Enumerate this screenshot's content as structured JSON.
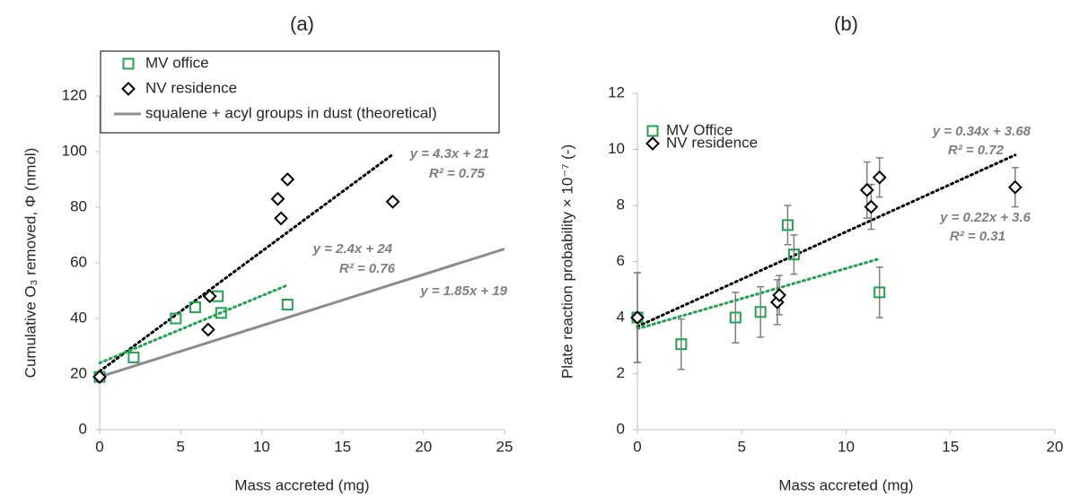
{
  "chart_data": [
    {
      "type": "scatter",
      "title": "(a)",
      "x_label": "Mass accreted (mg)",
      "y_label": "Cumulative O₃ removed, Φ (nmol)",
      "xlim": [
        0,
        25
      ],
      "xticks": [
        0,
        5,
        10,
        15,
        20,
        25
      ],
      "ylim": [
        0,
        120
      ],
      "yticks": [
        0,
        20,
        40,
        60,
        80,
        100,
        120
      ],
      "legend": "top-left",
      "legend_box": true,
      "series": [
        {
          "name": "MV office",
          "color": "#22a24f",
          "marker": "square",
          "x": [
            0,
            2.1,
            4.7,
            5.9,
            7.3,
            7.5,
            11.6
          ],
          "values": [
            19,
            26,
            40,
            44,
            48,
            42,
            45
          ]
        },
        {
          "name": "NV residence",
          "color": "#000000",
          "marker": "diamond",
          "x": [
            0,
            6.7,
            6.8,
            11.0,
            11.2,
            11.6,
            18.1
          ],
          "values": [
            19,
            36,
            48,
            83,
            76,
            90,
            82
          ]
        }
      ],
      "trendlines": [
        {
          "name": "squalene + acyl groups in dust (theoretical)",
          "color": "#8c8c8c",
          "style": "solid",
          "x": [
            0,
            25
          ],
          "values": [
            19,
            65
          ],
          "equation": "y = 1.85x + 19"
        },
        {
          "color": "#000000",
          "style": "dotted",
          "x": [
            0,
            18.1
          ],
          "values": [
            21,
            99
          ],
          "equation": "y = 4.3x + 21",
          "r2": "R² = 0.75"
        },
        {
          "color": "#22a24f",
          "style": "dotted",
          "x": [
            0,
            11.6
          ],
          "values": [
            24,
            52
          ],
          "equation": "y = 2.4x + 24",
          "r2": "R² = 0.76"
        }
      ]
    },
    {
      "type": "scatter",
      "title": "(b)",
      "x_label": "Mass accreted (mg)",
      "y_label": "Plate reaction probability × 10⁻⁷ (-)",
      "xlim": [
        0,
        20
      ],
      "xticks": [
        0,
        5,
        10,
        15,
        20
      ],
      "ylim": [
        0,
        12
      ],
      "yticks": [
        0,
        2,
        4,
        6,
        8,
        10,
        12
      ],
      "legend": "top-left",
      "legend_box": false,
      "series": [
        {
          "name": "MV Office",
          "color": "#22a24f",
          "marker": "square",
          "x": [
            0,
            2.1,
            4.7,
            5.9,
            7.2,
            7.5,
            11.6
          ],
          "values": [
            4.0,
            3.05,
            4.0,
            4.2,
            7.3,
            6.25,
            4.9
          ],
          "errors": [
            1.6,
            0.9,
            0.9,
            0.9,
            0.7,
            0.7,
            0.9
          ]
        },
        {
          "name": "NV residence",
          "color": "#000000",
          "marker": "diamond",
          "x": [
            0,
            6.7,
            6.8,
            11.0,
            11.2,
            11.6,
            18.1
          ],
          "values": [
            4.0,
            4.55,
            4.8,
            8.55,
            7.95,
            9.0,
            8.65
          ],
          "errors": [
            1.6,
            0.8,
            0.7,
            1.0,
            0.8,
            0.7,
            0.7
          ]
        }
      ],
      "trendlines": [
        {
          "color": "#000000",
          "style": "dotted",
          "x": [
            0,
            18.1
          ],
          "values": [
            3.68,
            9.8
          ],
          "equation": "y = 0.34x + 3.68",
          "r2": "R² = 0.72"
        },
        {
          "color": "#22a24f",
          "style": "dotted",
          "x": [
            0,
            11.6
          ],
          "values": [
            3.6,
            6.1
          ],
          "equation": "y = 0.22x + 3.6",
          "r2": "R² = 0.31"
        }
      ]
    }
  ]
}
